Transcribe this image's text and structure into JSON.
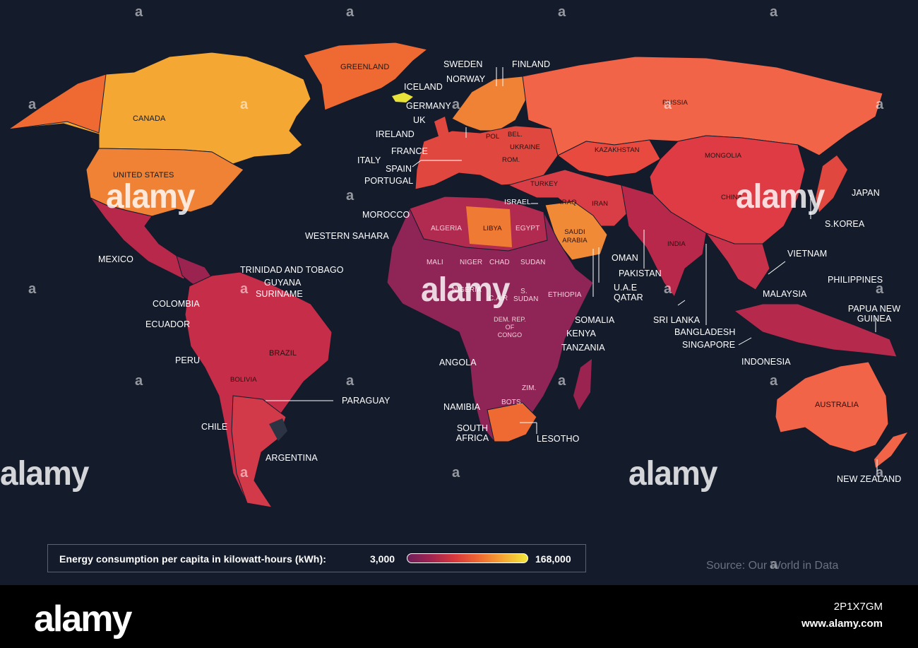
{
  "map": {
    "title": "",
    "colors": {
      "background": "#141b2b",
      "low": "#6e1f5a",
      "mid_low": "#a22450",
      "mid": "#d8393c",
      "mid_high": "#ee6a32",
      "high": "#f5a733",
      "highest": "#f1e83a",
      "na": "#2c3444"
    },
    "labels": {
      "greenland": "GREENLAND",
      "canada": "CANADA",
      "united_states": "UNITED STATES",
      "mexico": "MEXICO",
      "iceland": "ICELAND",
      "sweden": "SWEDEN",
      "finland": "FINLAND",
      "norway": "NORWAY",
      "germany": "GERMANY",
      "uk": "UK",
      "ireland": "IRELAND",
      "france": "FRANCE",
      "italy": "ITALY",
      "spain": "SPAIN",
      "portugal": "PORTUGAL",
      "morocco": "MOROCCO",
      "western_sahara": "WESTERN SAHARA",
      "russia": "RUSSIA",
      "pol": "POL",
      "bel": "BEL.",
      "ukraine": "UKRAINE",
      "rom": "ROM.",
      "kazakhstan": "KAZAKHSTAN",
      "mongolia": "MONGOLIA",
      "turkey": "TURKEY",
      "iraq": "IRAQ",
      "israel": "ISRAEL",
      "iran": "IRAN",
      "china": "CHINA",
      "japan": "JAPAN",
      "s_korea": "S.KOREA",
      "saudi_arabia": "SAUDI ARABIA",
      "oman": "OMAN",
      "pakistan": "PAKISTAN",
      "uae": "U.A.E",
      "qatar": "QATAR",
      "india": "INDIA",
      "vietnam": "VIETNAM",
      "philippines": "PHILIPPINES",
      "malaysia": "MALAYSIA",
      "sri_lanka": "SRI LANKA",
      "bangladesh": "BANGLADESH",
      "singapore": "SINGAPORE",
      "indonesia": "INDONESIA",
      "papua_new_guinea": "PAPUA NEW GUINEA",
      "australia": "AUSTRALIA",
      "new_zealand": "NEW ZEALAND",
      "algeria": "ALGERIA",
      "libya": "LIBYA",
      "egypt": "EGYPT",
      "mali": "MALI",
      "niger": "NIGER",
      "chad": "CHAD",
      "sudan": "SUDAN",
      "nigeria": "NIGERIA",
      "car": "C.A.R",
      "s_sudan": "S. SUDAN",
      "ethiopia": "ETHIOPIA",
      "somalia": "SOMALIA",
      "kenya": "KENYA",
      "tanzania": "TANZANIA",
      "dem_rep_congo": "DEM. REP. OF CONGO",
      "angola": "ANGOLA",
      "zim": "ZIM.",
      "bots": "BOTS.",
      "namibia": "NAMIBIA",
      "south_africa": "SOUTH AFRICA",
      "lesotho": "LESOTHO",
      "trinidad_and_tobago": "TRINIDAD AND TOBAGO",
      "guyana": "GUYANA",
      "suriname": "SURINAME",
      "colombia": "COLOMBIA",
      "ecuador": "ECUADOR",
      "peru": "PERU",
      "brazil": "BRAZIL",
      "bolivia": "BOLIVIA",
      "paraguay": "PARAGUAY",
      "chile": "CHILE",
      "argentina": "ARGENTINA"
    }
  },
  "legend": {
    "title": "Energy consumption per capita in  kilowatt-hours (kWh):",
    "min": "3,000",
    "max": "168,000"
  },
  "source": "Source: Our World in Data",
  "watermark": {
    "text": "alamy",
    "tile_mark": "a",
    "image_id": "2P1X7GM",
    "url": "www.alamy.com"
  }
}
